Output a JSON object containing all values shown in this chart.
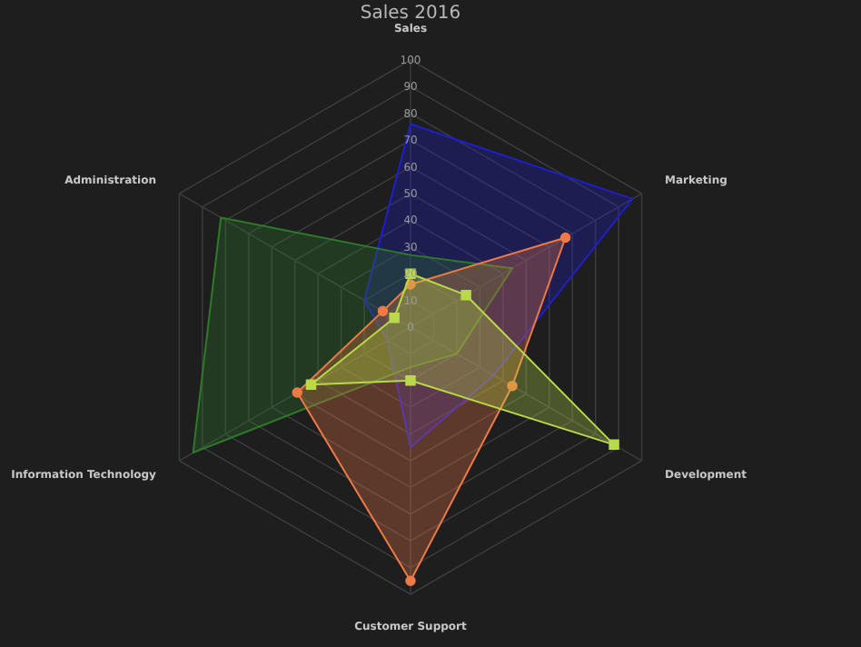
{
  "chart_data": {
    "type": "radar",
    "title": "Sales 2016",
    "categories": [
      "Sales",
      "Marketing",
      "Development",
      "Customer Support",
      "Information Technology",
      "Administration"
    ],
    "series": [
      {
        "color": "#1f1fc8",
        "marker": "none",
        "values": [
          76,
          96,
          36,
          45,
          10,
          20
        ]
      },
      {
        "color": "#2f7a2a",
        "marker": "none",
        "values": [
          27,
          44,
          20,
          15,
          94,
          82
        ]
      },
      {
        "color": "#f07a45",
        "marker": "circle",
        "values": [
          16,
          67,
          44,
          95,
          49,
          12
        ]
      },
      {
        "color": "#b9d94a",
        "marker": "square",
        "values": [
          20,
          24,
          88,
          20,
          43,
          7
        ]
      }
    ],
    "ylim": [
      0,
      100
    ],
    "yticks": [
      0,
      10,
      20,
      30,
      40,
      50,
      60,
      70,
      80,
      90,
      100
    ],
    "grid": true
  }
}
